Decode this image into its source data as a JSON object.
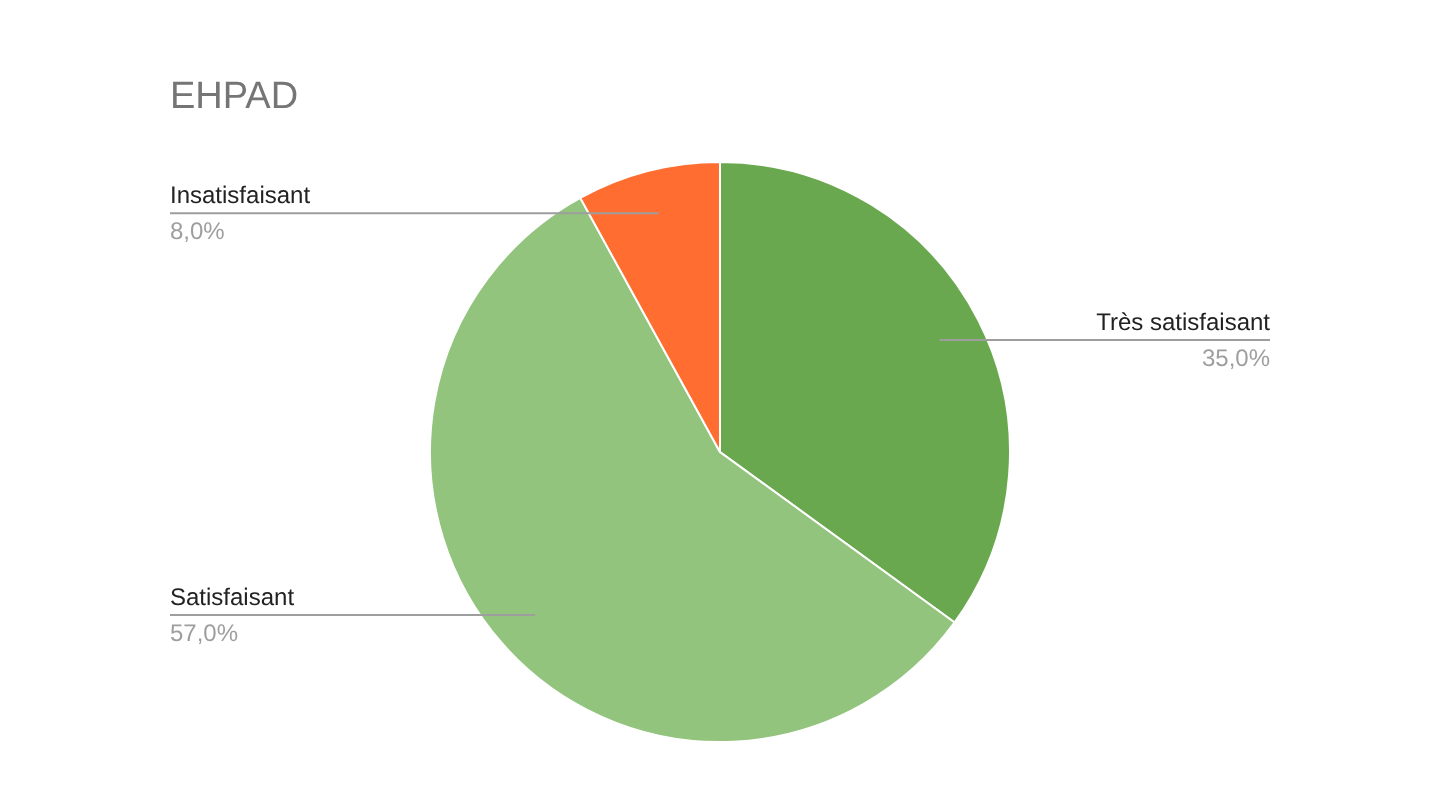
{
  "chart_data": {
    "type": "pie",
    "title": "EHPAD",
    "categories": [
      "Très satisfaisant",
      "Satisfaisant",
      "Insatisfaisant"
    ],
    "values": [
      35,
      57,
      8
    ],
    "colors": [
      "#6aa84f",
      "#93c47d",
      "#ff6d31"
    ],
    "value_labels": [
      "35,0%",
      "57,0%",
      "8,0%"
    ]
  }
}
